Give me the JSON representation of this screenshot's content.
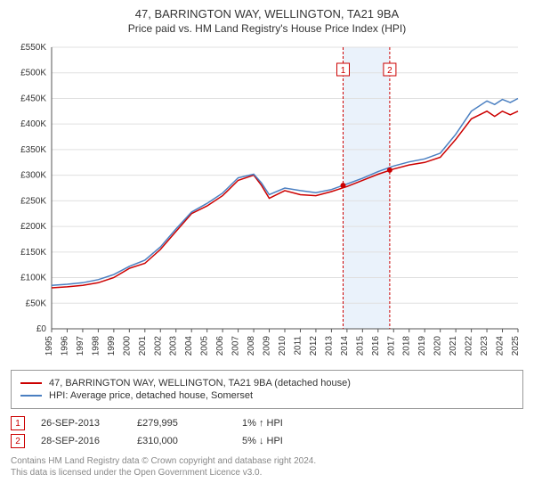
{
  "title": "47, BARRINGTON WAY, WELLINGTON, TA21 9BA",
  "subtitle": "Price paid vs. HM Land Registry's House Price Index (HPI)",
  "chart": {
    "type": "line",
    "background_color": "#ffffff",
    "grid_color": "#e0e0e0",
    "axis_color": "#555555",
    "font_size_axis": 10,
    "y": {
      "min": 0,
      "max": 550000,
      "step": 50000,
      "labels": [
        "£0",
        "£50K",
        "£100K",
        "£150K",
        "£200K",
        "£250K",
        "£300K",
        "£350K",
        "£400K",
        "£450K",
        "£500K",
        "£550K"
      ]
    },
    "x": {
      "min": 1995,
      "max": 2025,
      "step": 1,
      "labels": [
        "1995",
        "1996",
        "1997",
        "1998",
        "1999",
        "2000",
        "2001",
        "2002",
        "2003",
        "2004",
        "2005",
        "2006",
        "2007",
        "2008",
        "2009",
        "2010",
        "2011",
        "2012",
        "2013",
        "2014",
        "2015",
        "2016",
        "2017",
        "2018",
        "2019",
        "2020",
        "2021",
        "2022",
        "2023",
        "2024",
        "2025"
      ]
    },
    "highlight_band": {
      "start": 2013.75,
      "end": 2016.75,
      "color": "#eaf2fb"
    },
    "markers": [
      {
        "id": "1",
        "x": 2013.75,
        "y_label_offset": 18
      },
      {
        "id": "2",
        "x": 2016.75,
        "y_label_offset": 18
      }
    ],
    "sale_points": [
      {
        "x": 2013.75,
        "y": 279995,
        "color": "#cc0000",
        "radius": 3
      },
      {
        "x": 2016.75,
        "y": 310000,
        "color": "#cc0000",
        "radius": 3
      }
    ],
    "series": [
      {
        "name": "property",
        "label": "47, BARRINGTON WAY, WELLINGTON, TA21 9BA (detached house)",
        "color": "#cc0000",
        "line_width": 1.5,
        "data": [
          [
            1995,
            80000
          ],
          [
            1996,
            82000
          ],
          [
            1997,
            85000
          ],
          [
            1998,
            90000
          ],
          [
            1999,
            100000
          ],
          [
            2000,
            118000
          ],
          [
            2001,
            128000
          ],
          [
            2002,
            155000
          ],
          [
            2003,
            190000
          ],
          [
            2004,
            225000
          ],
          [
            2005,
            240000
          ],
          [
            2006,
            260000
          ],
          [
            2007,
            290000
          ],
          [
            2008,
            300000
          ],
          [
            2008.5,
            280000
          ],
          [
            2009,
            255000
          ],
          [
            2010,
            270000
          ],
          [
            2011,
            262000
          ],
          [
            2012,
            260000
          ],
          [
            2013,
            268000
          ],
          [
            2014,
            278000
          ],
          [
            2015,
            290000
          ],
          [
            2016,
            302000
          ],
          [
            2017,
            312000
          ],
          [
            2018,
            320000
          ],
          [
            2019,
            325000
          ],
          [
            2020,
            335000
          ],
          [
            2021,
            370000
          ],
          [
            2022,
            410000
          ],
          [
            2023,
            425000
          ],
          [
            2023.5,
            415000
          ],
          [
            2024,
            425000
          ],
          [
            2024.5,
            418000
          ],
          [
            2025,
            425000
          ]
        ]
      },
      {
        "name": "hpi",
        "label": "HPI: Average price, detached house, Somerset",
        "color": "#4a7fc1",
        "line_width": 1.5,
        "data": [
          [
            1995,
            85000
          ],
          [
            1996,
            87000
          ],
          [
            1997,
            90000
          ],
          [
            1998,
            96000
          ],
          [
            1999,
            106000
          ],
          [
            2000,
            122000
          ],
          [
            2001,
            134000
          ],
          [
            2002,
            160000
          ],
          [
            2003,
            195000
          ],
          [
            2004,
            228000
          ],
          [
            2005,
            245000
          ],
          [
            2006,
            265000
          ],
          [
            2007,
            295000
          ],
          [
            2008,
            302000
          ],
          [
            2008.5,
            285000
          ],
          [
            2009,
            262000
          ],
          [
            2010,
            275000
          ],
          [
            2011,
            270000
          ],
          [
            2012,
            266000
          ],
          [
            2013,
            272000
          ],
          [
            2014,
            283000
          ],
          [
            2015,
            294000
          ],
          [
            2016,
            307000
          ],
          [
            2017,
            318000
          ],
          [
            2018,
            326000
          ],
          [
            2019,
            332000
          ],
          [
            2020,
            343000
          ],
          [
            2021,
            380000
          ],
          [
            2022,
            425000
          ],
          [
            2023,
            445000
          ],
          [
            2023.5,
            438000
          ],
          [
            2024,
            448000
          ],
          [
            2024.5,
            442000
          ],
          [
            2025,
            450000
          ]
        ]
      }
    ]
  },
  "legend": {
    "items": [
      {
        "color": "#cc0000",
        "label": "47, BARRINGTON WAY, WELLINGTON, TA21 9BA (detached house)"
      },
      {
        "color": "#4a7fc1",
        "label": "HPI: Average price, detached house, Somerset"
      }
    ]
  },
  "data_points": [
    {
      "id": "1",
      "date": "26-SEP-2013",
      "price": "£279,995",
      "delta": "1% ↑ HPI"
    },
    {
      "id": "2",
      "date": "28-SEP-2016",
      "price": "£310,000",
      "delta": "5% ↓ HPI"
    }
  ],
  "footer": {
    "line1": "Contains HM Land Registry data © Crown copyright and database right 2024.",
    "line2": "This data is licensed under the Open Government Licence v3.0."
  }
}
